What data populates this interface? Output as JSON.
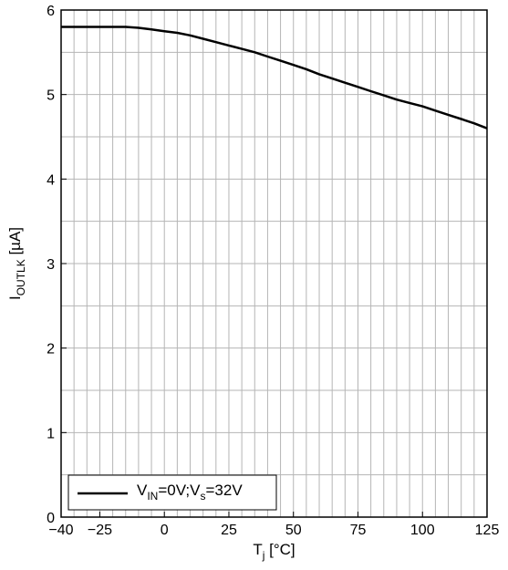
{
  "chart_data": {
    "type": "line",
    "title": "",
    "xlabel": {
      "main": "T",
      "sub": "j",
      "unit": " [°C]"
    },
    "ylabel": {
      "main": "I",
      "sub": "OUTLK",
      "unit": " [µA]"
    },
    "xlim": [
      -40,
      125
    ],
    "ylim": [
      0,
      6
    ],
    "x_ticks": [
      -40,
      -25,
      0,
      25,
      50,
      75,
      100,
      125
    ],
    "x_tick_labels": [
      "−40",
      "−25",
      "0",
      "25",
      "50",
      "75",
      "100",
      "125"
    ],
    "y_ticks": [
      0,
      1,
      2,
      3,
      4,
      5,
      6
    ],
    "y_tick_labels": [
      "0",
      "1",
      "2",
      "3",
      "4",
      "5",
      "6"
    ],
    "x_minor_step": 5,
    "y_minor_step": 0.5,
    "grid": true,
    "legend_position": "bottom-left",
    "line_color": "#000000",
    "series": [
      {
        "legend": {
          "a": "V",
          "a_sub": "IN",
          "b": "=0V;V",
          "b_sub": "s",
          "c": "=32V"
        },
        "x": [
          -40,
          -30,
          -20,
          -15,
          -10,
          -5,
          0,
          5,
          10,
          15,
          20,
          25,
          30,
          35,
          40,
          45,
          50,
          55,
          60,
          65,
          70,
          75,
          80,
          85,
          90,
          95,
          100,
          105,
          110,
          115,
          120,
          125
        ],
        "y": [
          5.8,
          5.8,
          5.8,
          5.8,
          5.79,
          5.77,
          5.75,
          5.73,
          5.7,
          5.66,
          5.62,
          5.58,
          5.54,
          5.5,
          5.45,
          5.4,
          5.35,
          5.3,
          5.24,
          5.19,
          5.14,
          5.09,
          5.04,
          4.99,
          4.94,
          4.9,
          4.86,
          4.81,
          4.76,
          4.71,
          4.66,
          4.6
        ]
      }
    ]
  }
}
